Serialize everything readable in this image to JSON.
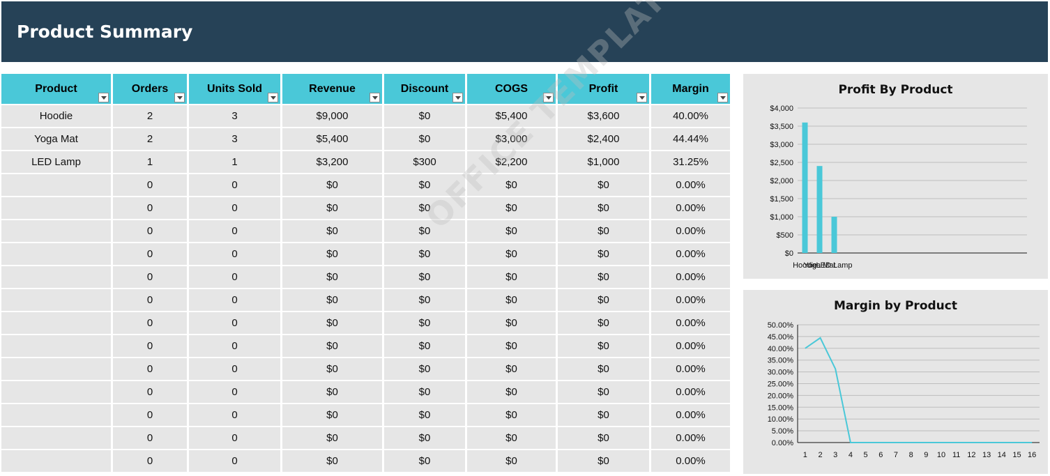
{
  "header": {
    "title": "Product Summary"
  },
  "table": {
    "columns": [
      "Product",
      "Orders",
      "Units Sold",
      "Revenue",
      "Discount",
      "COGS",
      "Profit",
      "Margin"
    ],
    "rows": [
      [
        "Hoodie",
        "2",
        "3",
        "$9,000",
        "$0",
        "$5,400",
        "$3,600",
        "40.00%"
      ],
      [
        "Yoga Mat",
        "2",
        "3",
        "$5,400",
        "$0",
        "$3,000",
        "$2,400",
        "44.44%"
      ],
      [
        "LED Lamp",
        "1",
        "1",
        "$3,200",
        "$300",
        "$2,200",
        "$1,000",
        "31.25%"
      ],
      [
        "",
        "0",
        "0",
        "$0",
        "$0",
        "$0",
        "$0",
        "0.00%"
      ],
      [
        "",
        "0",
        "0",
        "$0",
        "$0",
        "$0",
        "$0",
        "0.00%"
      ],
      [
        "",
        "0",
        "0",
        "$0",
        "$0",
        "$0",
        "$0",
        "0.00%"
      ],
      [
        "",
        "0",
        "0",
        "$0",
        "$0",
        "$0",
        "$0",
        "0.00%"
      ],
      [
        "",
        "0",
        "0",
        "$0",
        "$0",
        "$0",
        "$0",
        "0.00%"
      ],
      [
        "",
        "0",
        "0",
        "$0",
        "$0",
        "$0",
        "$0",
        "0.00%"
      ],
      [
        "",
        "0",
        "0",
        "$0",
        "$0",
        "$0",
        "$0",
        "0.00%"
      ],
      [
        "",
        "0",
        "0",
        "$0",
        "$0",
        "$0",
        "$0",
        "0.00%"
      ],
      [
        "",
        "0",
        "0",
        "$0",
        "$0",
        "$0",
        "$0",
        "0.00%"
      ],
      [
        "",
        "0",
        "0",
        "$0",
        "$0",
        "$0",
        "$0",
        "0.00%"
      ],
      [
        "",
        "0",
        "0",
        "$0",
        "$0",
        "$0",
        "$0",
        "0.00%"
      ],
      [
        "",
        "0",
        "0",
        "$0",
        "$0",
        "$0",
        "$0",
        "0.00%"
      ],
      [
        "",
        "0",
        "0",
        "$0",
        "$0",
        "$0",
        "$0",
        "0.00%"
      ]
    ]
  },
  "watermark": {
    "text": "OFFICE TEMPLATES ONLINE"
  },
  "colors": {
    "header_bg": "#264257",
    "accent": "#4ac8d8",
    "cell_bg": "#e6e6e6"
  },
  "chart_data": [
    {
      "type": "bar",
      "title": "Profit By Product",
      "categories": [
        "Hoodie",
        "Yoga Mat",
        "LED Lamp"
      ],
      "values": [
        3600,
        2400,
        1000
      ],
      "ylim": [
        0,
        4000
      ],
      "yticks": [
        "$0",
        "$500",
        "$1,000",
        "$1,500",
        "$2,000",
        "$2,500",
        "$3,000",
        "$3,500",
        "$4,000"
      ],
      "grid": true,
      "legend": "none"
    },
    {
      "type": "line",
      "title": "Margin by Product",
      "x": [
        "1",
        "2",
        "3",
        "4",
        "5",
        "6",
        "7",
        "8",
        "9",
        "10",
        "11",
        "12",
        "13",
        "14",
        "15",
        "16"
      ],
      "values": [
        40.0,
        44.44,
        31.25,
        0,
        0,
        0,
        0,
        0,
        0,
        0,
        0,
        0,
        0,
        0,
        0,
        0
      ],
      "ylim": [
        0,
        50
      ],
      "yticks": [
        "0.00%",
        "5.00%",
        "10.00%",
        "15.00%",
        "20.00%",
        "25.00%",
        "30.00%",
        "35.00%",
        "40.00%",
        "45.00%",
        "50.00%"
      ],
      "grid": true,
      "legend": "none"
    }
  ]
}
